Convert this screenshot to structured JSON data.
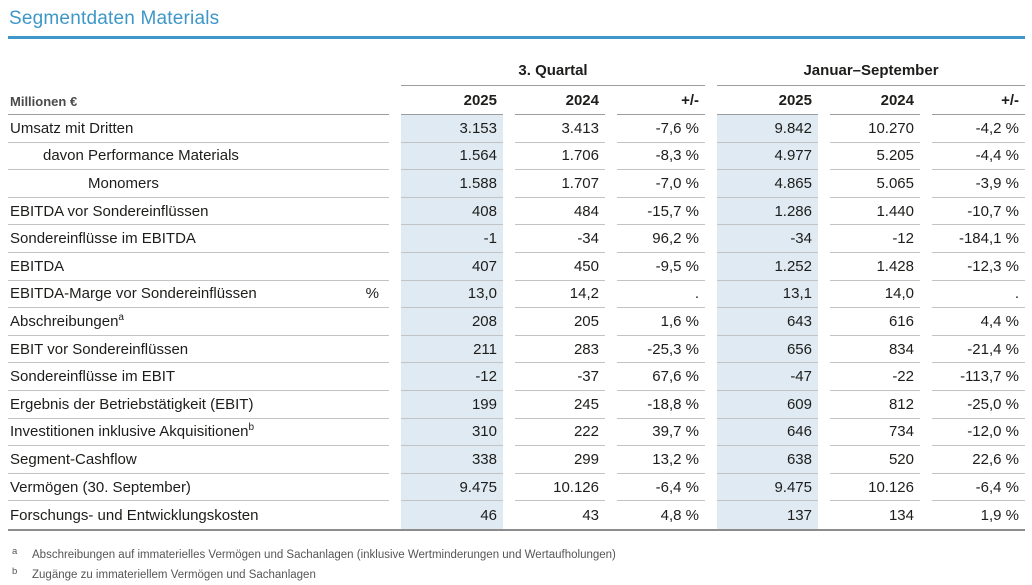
{
  "page": {
    "title": "Segmentdaten Materials"
  },
  "colors": {
    "accent_blue": "#3e97c8",
    "highlight_blue": "#dfeaf2"
  },
  "table": {
    "unit_label": "Millionen €",
    "groups": [
      {
        "label": "3. Quartal"
      },
      {
        "label": "Januar–September"
      }
    ],
    "column_headers": [
      "2025",
      "2024",
      "+/-"
    ],
    "rows": [
      {
        "label": "Umsatz mit Dritten",
        "values": [
          "3.153",
          "3.413",
          "-7,6 %",
          "9.842",
          "10.270",
          "-4,2 %"
        ]
      },
      {
        "label": "davon Performance Materials",
        "values": [
          "1.564",
          "1.706",
          "-8,3 %",
          "4.977",
          "5.205",
          "-4,4 %"
        ]
      },
      {
        "label": "Monomers",
        "values": [
          "1.588",
          "1.707",
          "-7,0 %",
          "4.865",
          "5.065",
          "-3,9 %"
        ]
      },
      {
        "label": "EBITDA vor Sondereinflüssen",
        "values": [
          "408",
          "484",
          "-15,7 %",
          "1.286",
          "1.440",
          "-10,7 %"
        ]
      },
      {
        "label": "Sondereinflüsse im EBITDA",
        "values": [
          "-1",
          "-34",
          "96,2 %",
          "-34",
          "-12",
          "-184,1 %"
        ]
      },
      {
        "label": "EBITDA",
        "values": [
          "407",
          "450",
          "-9,5 %",
          "1.252",
          "1.428",
          "-12,3 %"
        ]
      },
      {
        "label": "EBITDA-Marge vor Sondereinflüssen",
        "unit": "%",
        "values": [
          "13,0",
          "14,2",
          ".",
          "13,1",
          "14,0",
          "."
        ]
      },
      {
        "label": "Abschreibungen",
        "sup": "a",
        "values": [
          "208",
          "205",
          "1,6 %",
          "643",
          "616",
          "4,4 %"
        ]
      },
      {
        "label": "EBIT vor Sondereinflüssen",
        "values": [
          "211",
          "283",
          "-25,3 %",
          "656",
          "834",
          "-21,4 %"
        ]
      },
      {
        "label": "Sondereinflüsse im EBIT",
        "values": [
          "-12",
          "-37",
          "67,6 %",
          "-47",
          "-22",
          "-113,7 %"
        ]
      },
      {
        "label": "Ergebnis der Betriebstätigkeit (EBIT)",
        "values": [
          "199",
          "245",
          "-18,8 %",
          "609",
          "812",
          "-25,0 %"
        ]
      },
      {
        "label": "Investitionen inklusive Akquisitionen",
        "sup": "b",
        "values": [
          "310",
          "222",
          "39,7 %",
          "646",
          "734",
          "-12,0 %"
        ]
      },
      {
        "label": "Segment-Cashflow",
        "values": [
          "338",
          "299",
          "13,2 %",
          "638",
          "520",
          "22,6 %"
        ]
      },
      {
        "label": "Vermögen (30. September)",
        "values": [
          "9.475",
          "10.126",
          "-6,4 %",
          "9.475",
          "10.126",
          "-6,4 %"
        ]
      },
      {
        "label": "Forschungs- und Entwicklungskosten",
        "values": [
          "46",
          "43",
          "4,8 %",
          "137",
          "134",
          "1,9 %"
        ]
      }
    ]
  },
  "footnotes": [
    {
      "marker": "a",
      "text": "Abschreibungen auf immaterielles Vermögen und Sachanlagen (inklusive Wertminderungen und Wertaufholungen)"
    },
    {
      "marker": "b",
      "text": "Zugänge zu immateriellem Vermögen und Sachanlagen"
    }
  ]
}
